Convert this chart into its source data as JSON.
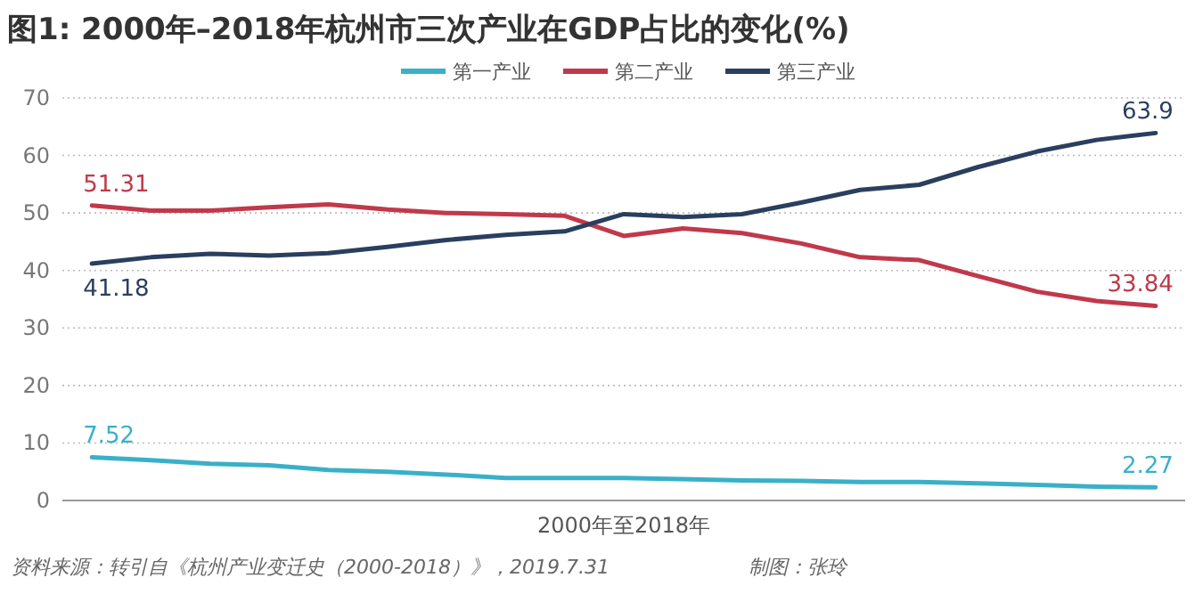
{
  "chart_data": {
    "type": "line",
    "title": "图1: 2000年–2018年杭州市三次产业在GDP占比的变化(%)",
    "xlabel": "2000年至2018年",
    "categories": [
      null,
      null,
      null,
      null,
      null,
      null,
      null,
      null,
      null,
      null,
      null,
      null,
      null,
      null,
      null,
      null,
      null,
      null,
      null
    ],
    "ylim": [
      0,
      70
    ],
    "yticks": [
      0,
      10,
      20,
      30,
      40,
      50,
      60,
      70
    ],
    "grid": "y",
    "legend": "top",
    "marker": "none",
    "line_style": "solid",
    "series": [
      {
        "name": "第一产业",
        "color": "#3ab0c8",
        "values": [
          7.52,
          7.0,
          6.4,
          6.1,
          5.3,
          5.0,
          4.5,
          3.9,
          3.9,
          3.9,
          3.7,
          3.5,
          3.4,
          3.2,
          3.2,
          3.0,
          2.7,
          2.4,
          2.27
        ],
        "value_labels": [
          "7.52",
          null,
          null,
          null,
          null,
          null,
          null,
          null,
          null,
          null,
          null,
          null,
          null,
          null,
          null,
          null,
          null,
          null,
          "2.27"
        ]
      },
      {
        "name": "第二产业",
        "color": "#c0394a",
        "values": [
          51.31,
          50.4,
          50.4,
          51.0,
          51.5,
          50.6,
          50.0,
          49.8,
          49.5,
          46.0,
          47.3,
          46.5,
          44.7,
          42.3,
          41.8,
          39.0,
          36.3,
          34.7,
          33.84
        ],
        "value_labels": [
          "51.31",
          null,
          null,
          null,
          null,
          null,
          null,
          null,
          null,
          null,
          null,
          null,
          null,
          null,
          null,
          null,
          null,
          null,
          "33.84"
        ]
      },
      {
        "name": "第三产业",
        "color": "#2a3f5f",
        "values": [
          41.18,
          42.3,
          42.9,
          42.6,
          43.0,
          44.1,
          45.3,
          46.2,
          46.8,
          49.8,
          49.3,
          49.8,
          51.8,
          54.0,
          54.9,
          58.0,
          60.7,
          62.7,
          63.9
        ],
        "value_labels": [
          "41.18",
          null,
          null,
          null,
          null,
          null,
          null,
          null,
          null,
          null,
          null,
          null,
          null,
          null,
          null,
          null,
          null,
          null,
          "63.9"
        ]
      }
    ],
    "annotations": [
      "资料来源：转引自《杭州产业变迁史（2000-2018）》，2019.7.31",
      "制图：张玲"
    ]
  }
}
